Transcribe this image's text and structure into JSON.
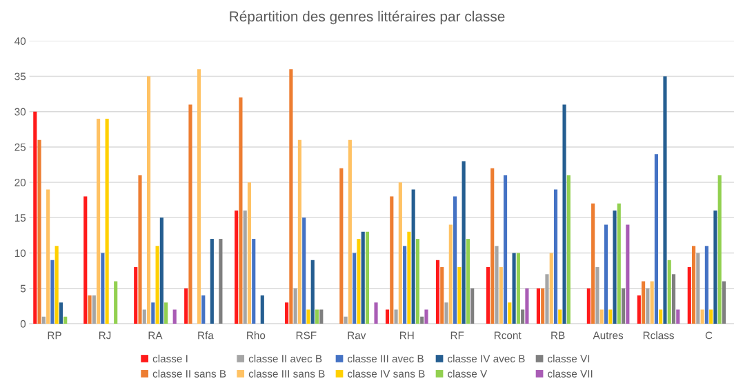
{
  "chart_data": {
    "type": "bar",
    "title": "Répartition des genres littéraires par classe",
    "categories": [
      "RP",
      "RJ",
      "RA",
      "Rfa",
      "Rho",
      "RSF",
      "Rav",
      "RH",
      "RF",
      "Rcont",
      "RB",
      "Autres",
      "Rclass",
      "C"
    ],
    "series": [
      {
        "name": "classe I",
        "color": "#ff1a1a",
        "values": [
          30,
          18,
          8,
          5,
          16,
          3,
          0,
          2,
          9,
          8,
          5,
          5,
          4,
          8
        ]
      },
      {
        "name": "classe II sans B",
        "color": "#ed7d31",
        "values": [
          26,
          4,
          21,
          31,
          32,
          36,
          22,
          18,
          8,
          22,
          5,
          17,
          6,
          11
        ]
      },
      {
        "name": "classe II avec B",
        "color": "#a5a5a5",
        "values": [
          1,
          4,
          2,
          0,
          16,
          5,
          1,
          2,
          3,
          11,
          7,
          8,
          5,
          10
        ]
      },
      {
        "name": "classe III sans B",
        "color": "#ffc264",
        "values": [
          19,
          29,
          35,
          36,
          20,
          26,
          26,
          20,
          14,
          8,
          10,
          2,
          6,
          2
        ]
      },
      {
        "name": "classe III avec B",
        "color": "#4472c4",
        "values": [
          9,
          10,
          3,
          4,
          12,
          15,
          10,
          11,
          18,
          21,
          19,
          14,
          24,
          11
        ]
      },
      {
        "name": "classe IV sans B",
        "color": "#ffd000",
        "values": [
          11,
          29,
          11,
          0,
          0,
          2,
          12,
          13,
          8,
          3,
          2,
          2,
          2,
          2
        ]
      },
      {
        "name": "classe IV avec B",
        "color": "#255e91",
        "values": [
          3,
          0,
          15,
          12,
          4,
          9,
          13,
          19,
          23,
          10,
          31,
          16,
          35,
          16
        ]
      },
      {
        "name": "classe V",
        "color": "#92d050",
        "values": [
          1,
          6,
          3,
          0,
          0,
          2,
          13,
          12,
          12,
          10,
          21,
          17,
          9,
          21
        ]
      },
      {
        "name": "classe VI",
        "color": "#7f7f7f",
        "values": [
          0,
          0,
          0,
          12,
          0,
          2,
          0,
          1,
          5,
          2,
          0,
          5,
          7,
          6
        ]
      },
      {
        "name": "classe VII",
        "color": "#a95cb5",
        "values": [
          0,
          0,
          2,
          0,
          0,
          0,
          3,
          2,
          0,
          5,
          0,
          14,
          2,
          0
        ]
      }
    ],
    "ylim": [
      0,
      40
    ],
    "yticks": [
      0,
      5,
      10,
      15,
      20,
      25,
      30,
      35,
      40
    ],
    "grid": "y",
    "legend": "bottom"
  }
}
